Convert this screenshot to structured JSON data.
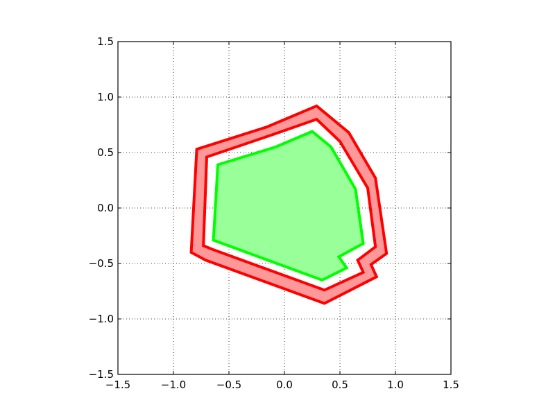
{
  "chart_data": {
    "type": "area",
    "title": "",
    "xlabel": "",
    "ylabel": "",
    "xlim": [
      -1.5,
      1.5
    ],
    "ylim": [
      -1.5,
      1.5
    ],
    "x_ticks": [
      -1.5,
      -1.0,
      -0.5,
      0.0,
      0.5,
      1.0,
      1.5
    ],
    "y_ticks": [
      -1.5,
      -1.0,
      -0.5,
      0.0,
      0.5,
      1.0,
      1.5
    ],
    "x_tick_labels": [
      "−1.5",
      "−1.0",
      "−0.5",
      "0.0",
      "0.5",
      "1.0",
      "1.5"
    ],
    "y_tick_labels": [
      "−1.5",
      "−1.0",
      "−0.5",
      "0.0",
      "0.5",
      "1.0",
      "1.5"
    ],
    "grid": true,
    "grid_style": "dotted",
    "legend": "none",
    "series": [
      {
        "kind": "ring",
        "stroke": "#ff0000",
        "fill": "#ff9999",
        "outer": [
          [
            0.29,
            0.92
          ],
          [
            0.58,
            0.68
          ],
          [
            0.82,
            0.27
          ],
          [
            0.92,
            -0.41
          ],
          [
            0.78,
            -0.51
          ],
          [
            0.83,
            -0.62
          ],
          [
            0.36,
            -0.86
          ],
          [
            -0.71,
            -0.47
          ],
          [
            -0.84,
            -0.4
          ],
          [
            -0.79,
            0.53
          ],
          [
            -0.16,
            0.73
          ],
          [
            0.29,
            0.92
          ]
        ],
        "inner": [
          [
            0.29,
            0.8
          ],
          [
            0.5,
            0.6
          ],
          [
            0.75,
            0.18
          ],
          [
            0.82,
            -0.35
          ],
          [
            0.66,
            -0.47
          ],
          [
            0.71,
            -0.58
          ],
          [
            0.36,
            -0.74
          ],
          [
            -0.63,
            -0.38
          ],
          [
            -0.73,
            -0.34
          ],
          [
            -0.7,
            0.46
          ],
          [
            -0.11,
            0.66
          ],
          [
            0.29,
            0.8
          ]
        ]
      },
      {
        "kind": "polygon",
        "stroke": "#00ff00",
        "fill": "#99ff99",
        "points": [
          [
            0.25,
            0.69
          ],
          [
            0.42,
            0.55
          ],
          [
            0.64,
            0.17
          ],
          [
            0.71,
            -0.32
          ],
          [
            0.49,
            -0.44
          ],
          [
            0.56,
            -0.54
          ],
          [
            0.34,
            -0.65
          ],
          [
            -0.64,
            -0.29
          ],
          [
            -0.6,
            0.39
          ],
          [
            -0.08,
            0.55
          ],
          [
            0.25,
            0.69
          ]
        ]
      }
    ]
  }
}
